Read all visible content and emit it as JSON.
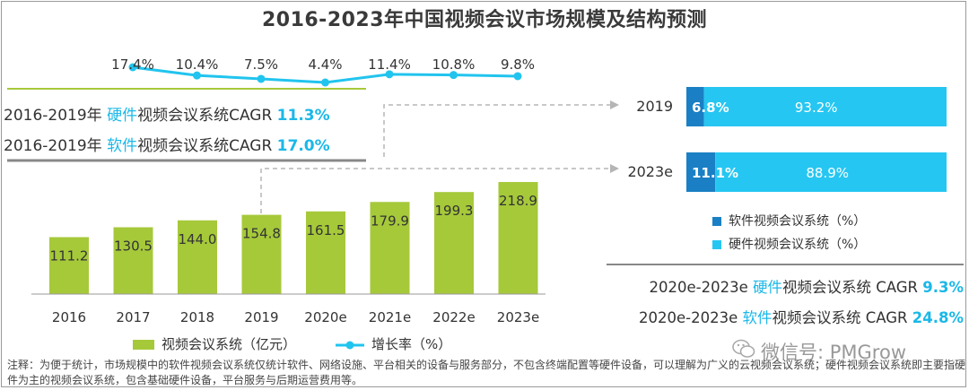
{
  "title": "2016-2023年中国视频会议市场规模及结构预测",
  "chart_data": [
    {
      "type": "bar",
      "categories": [
        "2016",
        "2017",
        "2018",
        "2019",
        "2020e",
        "2021e",
        "2022e",
        "2023e"
      ],
      "series": [
        {
          "name": "视频会议系统（亿元）",
          "values": [
            111.2,
            130.5,
            144.0,
            154.8,
            161.5,
            179.9,
            199.3,
            218.9
          ],
          "color": "#a6c93a"
        }
      ],
      "value_labels": [
        "111.2",
        "130.5",
        "144.0",
        "154.8",
        "161.5",
        "179.9",
        "199.3",
        "218.9"
      ]
    },
    {
      "type": "line",
      "x": [
        "2017",
        "2018",
        "2019",
        "2020e",
        "2021e",
        "2022e",
        "2023e"
      ],
      "series": [
        {
          "name": "增长率（%）",
          "values": [
            17.4,
            10.4,
            7.5,
            4.4,
            11.4,
            10.8,
            9.8
          ],
          "color": "#21c4ee"
        }
      ],
      "value_labels": [
        "17.4%",
        "10.4%",
        "7.5%",
        "4.4%",
        "11.4%",
        "10.8%",
        "9.8%"
      ]
    },
    {
      "type": "bar",
      "orientation": "horizontal",
      "stacked": true,
      "categories": [
        "2019",
        "2023e"
      ],
      "series": [
        {
          "name": "软件视频会议系统（%）",
          "values": [
            6.8,
            11.1
          ],
          "color": "#1a7fc4",
          "labels": [
            "6.8%",
            "11.1%"
          ]
        },
        {
          "name": "硬件视频会议系统（%）",
          "values": [
            93.2,
            88.9
          ],
          "color": "#26c6f2",
          "labels": [
            "93.2%",
            "88.9%"
          ]
        }
      ],
      "xlim": [
        0,
        100
      ]
    }
  ],
  "cagr_left": [
    {
      "prefix": "2016-2019年 ",
      "type": "硬件",
      "suffix": "视频会议系统CAGR ",
      "value": "11.3%"
    },
    {
      "prefix": "2016-2019年 ",
      "type": "软件",
      "suffix": "视频会议系统CAGR ",
      "value": "17.0%"
    }
  ],
  "cagr_right": [
    {
      "prefix": "2020e-2023e ",
      "type": "硬件",
      "suffix": "视频会议系统 CAGR ",
      "value": "9.3%"
    },
    {
      "prefix": "2020e-2023e ",
      "type": "软件",
      "suffix": "视频会议系统 CAGR ",
      "value": "24.8%"
    }
  ],
  "legend_right": {
    "software": "软件视频会议系统（%）",
    "hardware": "硬件视频会议系统（%）"
  },
  "legend_bottom": {
    "bars": "视频会议系统（亿元）",
    "line": "增长率（%）"
  },
  "watermark": "微信号: PMGrow",
  "note": "注释：为便于统计，市场规模中的软件视频会议系统仅统计软件、网络设施、平台相关的设备与服务部分，不包含终端配置等硬件设备，可以理解为广义的云视频会议系统；硬件视频会议系统即主要指硬件为主的视频会议系统，包含基础硬件设备，平台服务与后期运营费用等。",
  "colors": {
    "bar": "#a6c93a",
    "line": "#21c4ee",
    "software": "#1a7fc4",
    "hardware": "#26c6f2",
    "accent": "#1bb8e8"
  }
}
